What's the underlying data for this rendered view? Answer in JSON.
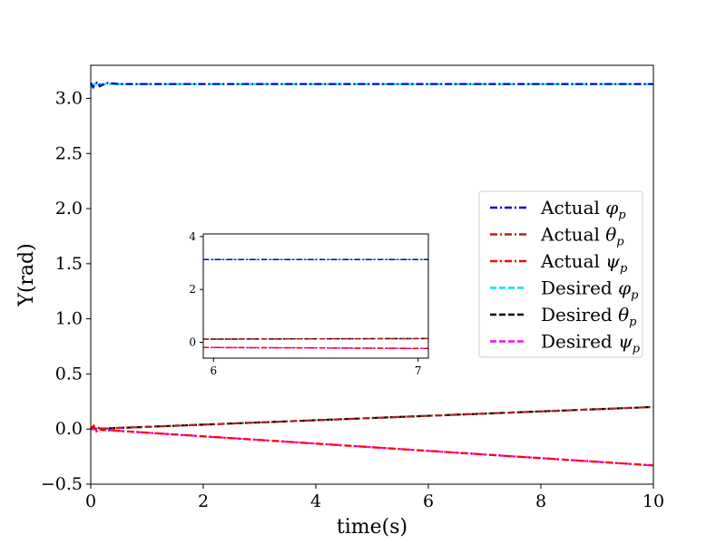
{
  "chart_data": {
    "type": "line",
    "xlabel": "time(s)",
    "ylabel": "Y(rad)",
    "xlim": [
      0,
      10
    ],
    "ylim": [
      -0.5,
      3.3
    ],
    "xticks": [
      0,
      2,
      4,
      6,
      8,
      10
    ],
    "xtick_labels": [
      "0",
      "2",
      "4",
      "6",
      "8",
      "10"
    ],
    "yticks": [
      -0.5,
      0.0,
      0.5,
      1.0,
      1.5,
      2.0,
      2.5,
      3.0
    ],
    "ytick_labels": [
      "−0.5",
      "0.0",
      "0.5",
      "1.0",
      "1.5",
      "2.0",
      "2.5",
      "3.0"
    ],
    "legend_position": "center-right",
    "series": [
      {
        "name": "Actual φp",
        "label": "Actual",
        "symbol": "φ",
        "sub": "p",
        "color": "#0000cc",
        "dash": "dashdot",
        "x": [
          0,
          0.04,
          0.08,
          0.12,
          0.16,
          0.2,
          0.3,
          0.5,
          1,
          2,
          4,
          6,
          8,
          10
        ],
        "y": [
          3.14,
          3.1,
          3.13,
          3.15,
          3.11,
          3.12,
          3.14,
          3.13,
          3.13,
          3.13,
          3.13,
          3.13,
          3.13,
          3.13
        ]
      },
      {
        "name": "Actual θp",
        "label": "Actual",
        "symbol": "θ",
        "sub": "p",
        "color": "#b22222",
        "dash": "dashdot",
        "x": [
          0,
          0.05,
          0.1,
          0.15,
          0.2,
          0.3,
          10
        ],
        "y": [
          0.0,
          0.02,
          -0.01,
          0.015,
          0.0,
          0.006,
          0.2
        ]
      },
      {
        "name": "Actual ψp",
        "label": "Actual",
        "symbol": "ψ",
        "sub": "p",
        "color": "#ff0000",
        "dash": "dashdot",
        "x": [
          0,
          0.05,
          0.1,
          0.15,
          0.2,
          0.3,
          10
        ],
        "y": [
          0.0,
          0.03,
          -0.02,
          0.01,
          -0.01,
          -0.01,
          -0.33
        ]
      },
      {
        "name": "Desired φp",
        "label": "Desired",
        "symbol": "φ",
        "sub": "p",
        "color": "#00e5ee",
        "dash": "dashed",
        "x": [
          0,
          10
        ],
        "y": [
          3.13,
          3.13
        ]
      },
      {
        "name": "Desired θp",
        "label": "Desired",
        "symbol": "θ",
        "sub": "p",
        "color": "#000000",
        "dash": "dashed",
        "x": [
          0,
          10
        ],
        "y": [
          0.0,
          0.2
        ]
      },
      {
        "name": "Desired ψp",
        "label": "Desired",
        "symbol": "ψ",
        "sub": "p",
        "color": "#ff00ff",
        "dash": "dashed",
        "x": [
          0,
          10
        ],
        "y": [
          0.0,
          -0.33
        ]
      }
    ],
    "inset": {
      "xlim": [
        5.95,
        7.05
      ],
      "ylim": [
        -0.6,
        4.1
      ],
      "xticks": [
        6,
        7
      ],
      "xtick_labels": [
        "6",
        "7"
      ],
      "yticks": [
        0,
        2,
        4
      ],
      "ytick_labels": [
        "0",
        "2",
        "4"
      ],
      "series": [
        {
          "color": "#00e5ee",
          "dash": "dashed",
          "x": [
            5.95,
            7.05
          ],
          "y": [
            3.13,
            3.13
          ]
        },
        {
          "color": "#0000cc",
          "dash": "dashdot",
          "x": [
            5.95,
            7.05
          ],
          "y": [
            3.13,
            3.13
          ]
        },
        {
          "color": "#000000",
          "dash": "dashed",
          "x": [
            5.95,
            7.05
          ],
          "y": [
            0.119,
            0.141
          ]
        },
        {
          "color": "#b22222",
          "dash": "dashdot",
          "x": [
            5.95,
            7.05
          ],
          "y": [
            0.119,
            0.141
          ]
        },
        {
          "color": "#ff00ff",
          "dash": "dashed",
          "x": [
            5.95,
            7.05
          ],
          "y": [
            -0.196,
            -0.233
          ]
        },
        {
          "color": "#ff0000",
          "dash": "dashdot",
          "x": [
            5.95,
            7.05
          ],
          "y": [
            -0.196,
            -0.233
          ]
        }
      ]
    }
  }
}
